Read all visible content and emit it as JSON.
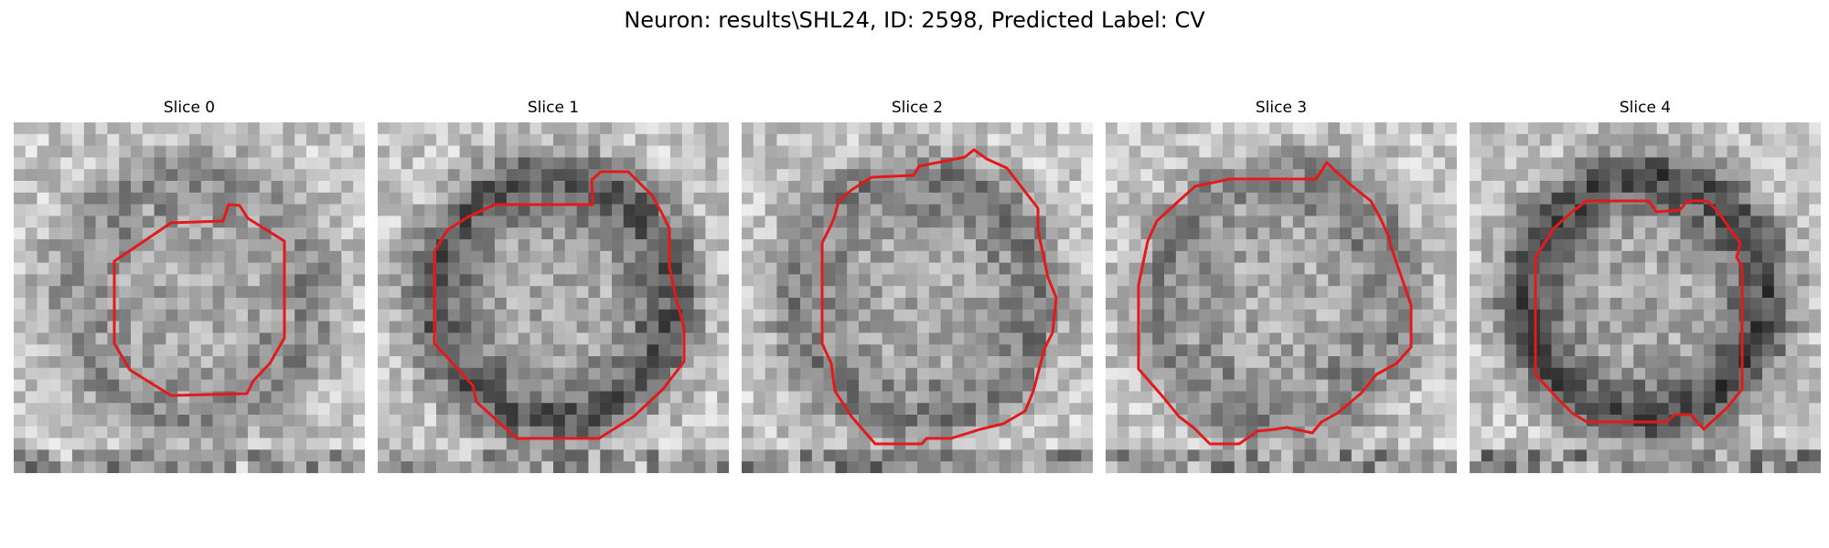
{
  "figure": {
    "title": "Neuron: results\\SHL24, ID: 2598, Predicted Label: CV"
  },
  "slices": [
    {
      "label": "Slice 0",
      "ring_strength": 0.45,
      "seed": 11
    },
    {
      "label": "Slice 1",
      "ring_strength": 0.8,
      "seed": 23
    },
    {
      "label": "Slice 2",
      "ring_strength": 0.55,
      "seed": 37
    },
    {
      "label": "Slice 3",
      "ring_strength": 0.5,
      "seed": 41
    },
    {
      "label": "Slice 4",
      "ring_strength": 0.9,
      "seed": 53
    }
  ],
  "colors": {
    "contour": "#e31a1c",
    "background": "#ffffff"
  }
}
